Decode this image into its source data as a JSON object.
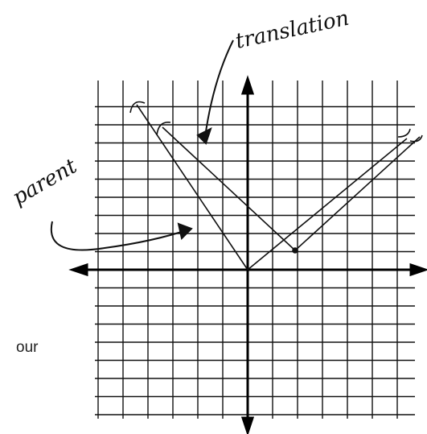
{
  "labels": {
    "translation": "translation",
    "parent": "parent"
  },
  "text_fragment": "our"
}
